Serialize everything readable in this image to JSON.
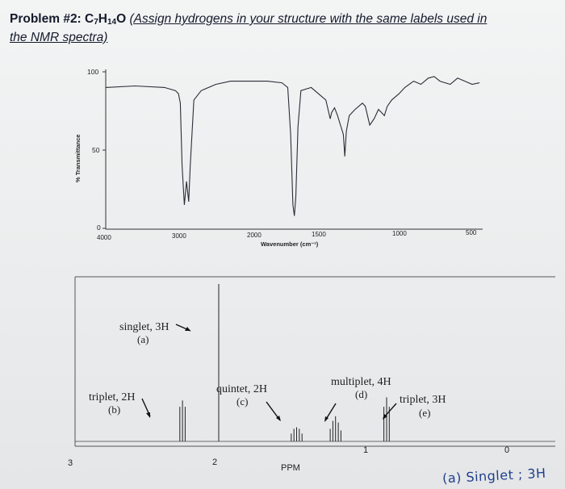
{
  "problem": {
    "prefix": "Problem #2: ",
    "formula": {
      "c": "C",
      "c_sub": "7",
      "h": "H",
      "h_sub": "14",
      "o": "O"
    },
    "instruction_line1": "(Assign hydrogens in your structure with the same labels used in",
    "instruction_line2": "the NMR spectra)"
  },
  "ir": {
    "ylabel": "% Transmittance",
    "xlabel": "Wavenumber (cm⁻¹)",
    "y_ticks": [
      "100",
      "50",
      "0"
    ],
    "x_ticks": [
      "4000",
      "3000",
      "2000",
      "1500",
      "1000",
      "500"
    ]
  },
  "nmr": {
    "x_ticks": [
      "3",
      "2",
      "1",
      "0"
    ],
    "xlabel": "PPM",
    "annotations": {
      "a_mult": "singlet, 3H",
      "a_label": "(a)",
      "b_mult": "triplet, 2H",
      "b_label": "(b)",
      "c_mult": "quintet, 2H",
      "c_label": "(c)",
      "d_mult": "multiplet, 4H",
      "d_label": "(d)",
      "e_mult": "triplet, 3H",
      "e_label": "(e)"
    }
  },
  "handwritten_note": "(a) Singlet ; 3H",
  "chart_data": [
    {
      "type": "line",
      "xlabel": "Wavenumber (cm⁻¹)",
      "ylabel": "% Transmittance",
      "xlim": [
        4000,
        400
      ],
      "ylim": [
        0,
        100
      ],
      "x_ticks": [
        4000,
        3000,
        2000,
        1500,
        1000,
        500
      ],
      "y_ticks": [
        0,
        50,
        100
      ],
      "series": [
        {
          "x": [
            4000,
            3600,
            3200,
            3050,
            3010,
            2985,
            2960,
            2930,
            2900,
            2870,
            2850,
            2800,
            2700,
            2500,
            2300,
            2100,
            1900,
            1800,
            1760,
            1740,
            1725,
            1715,
            1705,
            1690,
            1670,
            1600,
            1500,
            1470,
            1460,
            1440,
            1420,
            1400,
            1380,
            1370,
            1360,
            1340,
            1300,
            1250,
            1230,
            1200,
            1170,
            1140,
            1120,
            1100,
            1080,
            1050,
            1000,
            960,
            900,
            850,
            800,
            760,
            720,
            650,
            600,
            550,
            500,
            450
          ],
          "y": [
            90,
            91,
            90,
            88,
            86,
            80,
            40,
            15,
            30,
            17,
            40,
            82,
            88,
            92,
            94,
            94,
            94,
            93,
            90,
            60,
            15,
            8,
            20,
            65,
            88,
            90,
            82,
            70,
            74,
            77,
            72,
            66,
            60,
            46,
            62,
            72,
            76,
            80,
            78,
            66,
            70,
            76,
            74,
            72,
            78,
            82,
            86,
            90,
            94,
            92,
            96,
            97,
            94,
            92,
            96,
            94,
            92,
            93
          ]
        }
      ]
    },
    {
      "type": "line",
      "xlabel": "PPM",
      "xlim": [
        3.2,
        -0.1
      ],
      "x_ticks": [
        3,
        2,
        1,
        0
      ],
      "series": [
        {
          "x": [
            2.42,
            2.4,
            2.38,
            2.13,
            1.59,
            1.57,
            1.55,
            1.53,
            1.51,
            1.3,
            1.28,
            1.26,
            1.24,
            1.22,
            0.9,
            0.88,
            0.86,
            0.0
          ],
          "y": [
            0.22,
            0.26,
            0.22,
            1.0,
            0.05,
            0.08,
            0.09,
            0.08,
            0.05,
            0.08,
            0.13,
            0.16,
            0.12,
            0.07,
            0.22,
            0.28,
            0.22,
            0.0
          ]
        }
      ]
    }
  ]
}
